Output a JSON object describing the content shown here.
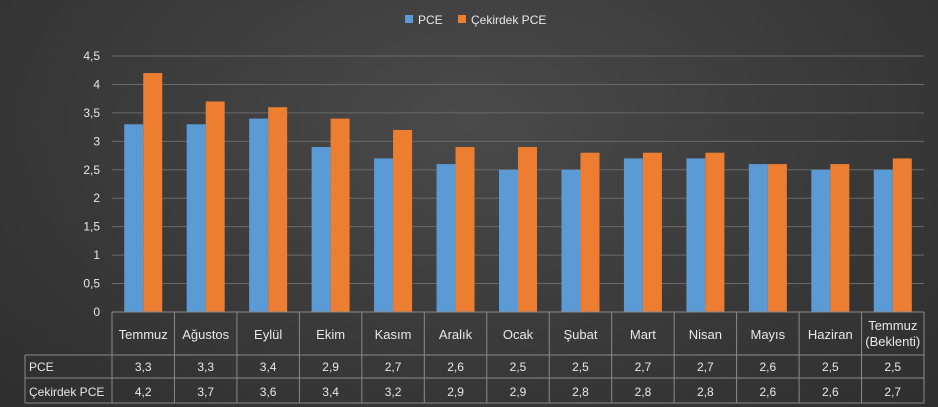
{
  "chart_data": {
    "type": "bar",
    "categories": [
      "Temmuz",
      "Ağustos",
      "Eylül",
      "Ekim",
      "Kasım",
      "Aralık",
      "Ocak",
      "Şubat",
      "Mart",
      "Nisan",
      "Mayıs",
      "Haziran",
      "Temmuz (Beklenti)"
    ],
    "category_lines": [
      [
        "Temmuz"
      ],
      [
        "Ağustos"
      ],
      [
        "Eylül"
      ],
      [
        "Ekim"
      ],
      [
        "Kasım"
      ],
      [
        "Aralık"
      ],
      [
        "Ocak"
      ],
      [
        "Şubat"
      ],
      [
        "Mart"
      ],
      [
        "Nisan"
      ],
      [
        "Mayıs"
      ],
      [
        "Haziran"
      ],
      [
        "Temmuz",
        "(Beklenti)"
      ]
    ],
    "series": [
      {
        "name": "PCE",
        "values": [
          3.3,
          3.3,
          3.4,
          2.9,
          2.7,
          2.6,
          2.5,
          2.5,
          2.7,
          2.7,
          2.6,
          2.5,
          2.5
        ],
        "color": "#5b9bd5"
      },
      {
        "name": "Çekirdek PCE",
        "values": [
          4.2,
          3.7,
          3.6,
          3.4,
          3.2,
          2.9,
          2.9,
          2.8,
          2.8,
          2.8,
          2.6,
          2.6,
          2.7
        ],
        "color": "#ed7d31"
      }
    ],
    "table_values": {
      "PCE": [
        "3,3",
        "3,3",
        "3,4",
        "2,9",
        "2,7",
        "2,6",
        "2,5",
        "2,5",
        "2,7",
        "2,7",
        "2,6",
        "2,5",
        "2,5"
      ],
      "Çekirdek PCE": [
        "4,2",
        "3,7",
        "3,6",
        "3,4",
        "3,2",
        "2,9",
        "2,9",
        "2,8",
        "2,8",
        "2,8",
        "2,6",
        "2,6",
        "2,7"
      ]
    },
    "yticks": [
      "0",
      "0,5",
      "1",
      "1,5",
      "2",
      "2,5",
      "3",
      "3,5",
      "4",
      "4,5"
    ],
    "ylim": [
      0,
      4.5
    ],
    "grid": true,
    "legend": "top-center",
    "data_table": true
  }
}
